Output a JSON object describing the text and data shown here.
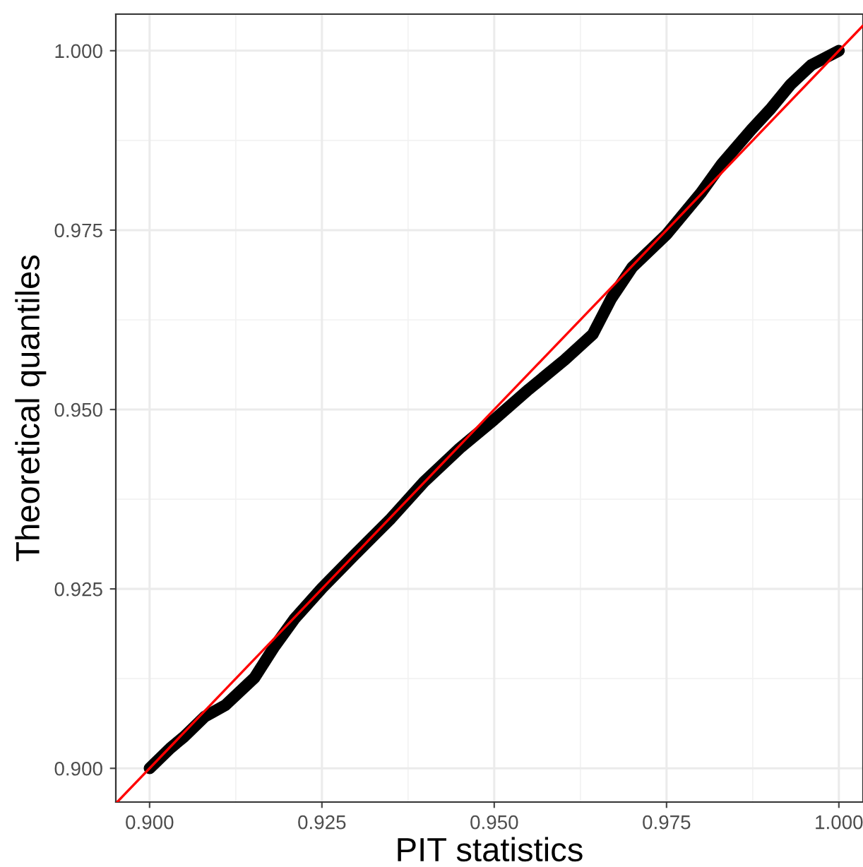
{
  "chart_data": {
    "type": "line",
    "xlabel": "PIT statistics",
    "ylabel": "Theoretical quantiles",
    "xlim": [
      0.8951,
      1.0035
    ],
    "ylim": [
      0.8953,
      1.0051
    ],
    "xticks": [
      {
        "value": 0.9,
        "label": "0.900"
      },
      {
        "value": 0.925,
        "label": "0.925"
      },
      {
        "value": 0.95,
        "label": "0.950"
      },
      {
        "value": 0.975,
        "label": "0.975"
      },
      {
        "value": 1.0,
        "label": "1.000"
      }
    ],
    "yticks": [
      {
        "value": 0.9,
        "label": "0.900"
      },
      {
        "value": 0.925,
        "label": "0.925"
      },
      {
        "value": 0.95,
        "label": "0.950"
      },
      {
        "value": 0.975,
        "label": "0.975"
      },
      {
        "value": 1.0,
        "label": "1.000"
      }
    ],
    "grid": true,
    "series": [
      {
        "color": "#000000",
        "x": [
          0.9,
          0.903,
          0.905,
          0.908,
          0.911,
          0.9152,
          0.918,
          0.921,
          0.925,
          0.93,
          0.935,
          0.9398,
          0.945,
          0.95,
          0.955,
          0.9602,
          0.9643,
          0.967,
          0.97,
          0.975,
          0.98,
          0.983,
          0.9873,
          0.99,
          0.993,
          0.996,
          1.0
        ],
        "values": [
          0.9,
          0.9028,
          0.9044,
          0.9072,
          0.9088,
          0.9126,
          0.9168,
          0.9208,
          0.9251,
          0.93,
          0.9348,
          0.9399,
          0.9446,
          0.9486,
          0.9528,
          0.9569,
          0.9605,
          0.9655,
          0.9698,
          0.9744,
          0.9802,
          0.9842,
          0.989,
          0.9918,
          0.9953,
          0.998,
          1.0
        ]
      },
      {
        "color": "#ff0000",
        "x": [
          0.8953,
          1.0035
        ],
        "values": [
          0.8953,
          1.0035
        ]
      }
    ]
  }
}
